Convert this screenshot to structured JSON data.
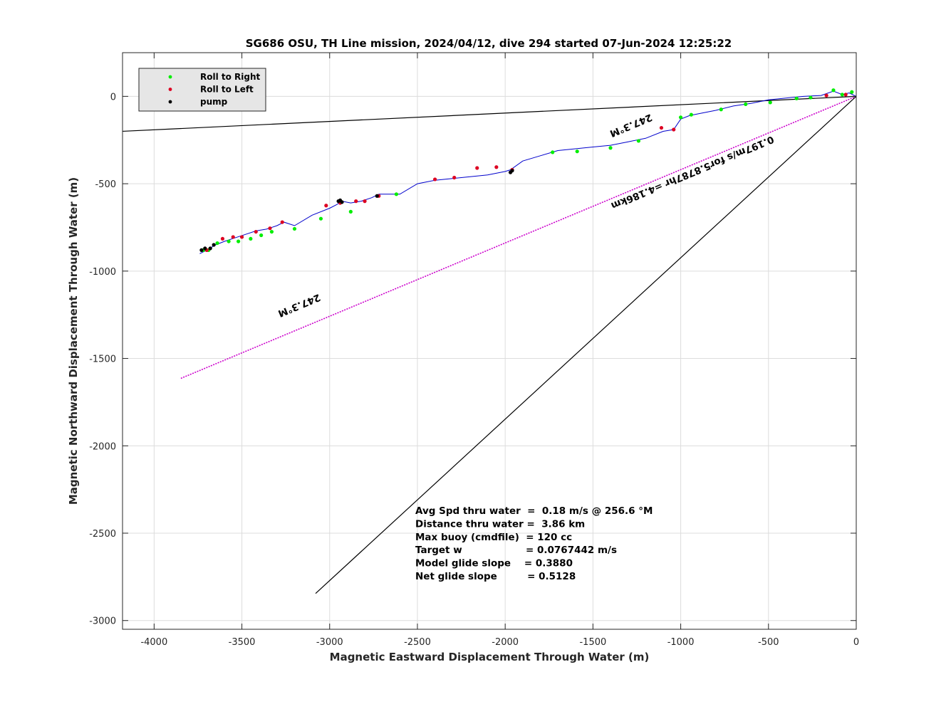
{
  "chart_data": {
    "type": "line",
    "title": "SG686 OSU, TH Line mission, 2024/04/12, dive 294 started 07-Jun-2024 12:25:22",
    "xlabel": "Magnetic Eastward Displacement Through Water (m)",
    "ylabel": "Magnetic Northward Displacement Through Water (m)",
    "xlim": [
      -4180,
      0
    ],
    "ylim": [
      -3050,
      250
    ],
    "xticks": [
      -4000,
      -3500,
      -3000,
      -2500,
      -2000,
      -1500,
      -1000,
      -500,
      0
    ],
    "yticks": [
      0,
      -500,
      -1000,
      -1500,
      -2000,
      -2500,
      -3000
    ],
    "xtick_labels": [
      "-4000",
      "-3500",
      "-3000",
      "-2500",
      "-2000",
      "-1500",
      "-1000",
      "-500",
      "0"
    ],
    "ytick_labels": [
      "0",
      "-500",
      "-1000",
      "-1500",
      "-2000",
      "-2500",
      "-3000"
    ],
    "grid": true,
    "legend_position": "top-left",
    "legend": [
      {
        "label": "Roll to Right",
        "color": "#00ee00"
      },
      {
        "label": "Roll to Left",
        "color": "#dd0022"
      },
      {
        "label": "pump",
        "color": "#000000"
      }
    ],
    "track": {
      "color": "#0000cc",
      "x": [
        -3740,
        -3700,
        -3650,
        -3600,
        -3540,
        -3480,
        -3420,
        -3360,
        -3300,
        -3260,
        -3200,
        -3100,
        -3000,
        -2960,
        -2930,
        -2880,
        -2820,
        -2760,
        -2720,
        -2600,
        -2500,
        -2400,
        -2300,
        -2200,
        -2100,
        -2000,
        -1970,
        -1900,
        -1800,
        -1700,
        -1600,
        -1500,
        -1400,
        -1300,
        -1200,
        -1100,
        -1040,
        -1000,
        -950,
        -900,
        -800,
        -700,
        -600,
        -500,
        -400,
        -300,
        -200,
        -130,
        -80,
        -40,
        0
      ],
      "y": [
        -900,
        -880,
        -850,
        -830,
        -810,
        -790,
        -770,
        -760,
        -740,
        -720,
        -740,
        -680,
        -640,
        -620,
        -600,
        -610,
        -600,
        -580,
        -560,
        -560,
        -500,
        -480,
        -470,
        -460,
        -450,
        -430,
        -420,
        -370,
        -340,
        -310,
        -300,
        -290,
        -280,
        -260,
        -240,
        -200,
        -190,
        -130,
        -110,
        -100,
        -80,
        -55,
        -40,
        -20,
        -10,
        0,
        5,
        30,
        10,
        20,
        0
      ]
    },
    "markers": {
      "right": {
        "x": [
          -3720,
          -3690,
          -3640,
          -3575,
          -3520,
          -3450,
          -3390,
          -3330,
          -3200,
          -3050,
          -2880,
          -2620,
          -1730,
          -1590,
          -1400,
          -1240,
          -1000,
          -940,
          -770,
          -630,
          -490,
          -340,
          -260,
          -130,
          -80,
          -25
        ],
        "y": [
          -880,
          -880,
          -840,
          -830,
          -830,
          -815,
          -795,
          -775,
          -758,
          -700,
          -660,
          -560,
          -320,
          -315,
          -295,
          -255,
          -120,
          -105,
          -75,
          -45,
          -35,
          -12,
          -7,
          35,
          10,
          25
        ]
      },
      "left": {
        "x": [
          -3700,
          -3610,
          -3550,
          -3500,
          -3420,
          -3340,
          -3270,
          -3020,
          -2940,
          -2850,
          -2800,
          -2720,
          -2400,
          -2290,
          -2160,
          -2050,
          -1960,
          -1110,
          -1040,
          -170,
          -60
        ],
        "y": [
          -880,
          -815,
          -805,
          -805,
          -775,
          -755,
          -720,
          -625,
          -610,
          -600,
          -600,
          -570,
          -475,
          -465,
          -410,
          -405,
          -420,
          -180,
          -190,
          5,
          10
        ]
      },
      "pump": {
        "x": [
          -3730,
          -3710,
          -3680,
          -3660,
          -2940,
          -2930,
          -2730,
          -1970,
          -1960,
          -2950
        ],
        "y": [
          -880,
          -870,
          -870,
          -850,
          -595,
          -605,
          -570,
          -435,
          -425,
          -600
        ]
      }
    },
    "reference_lines": [
      {
        "name": "black-line-1",
        "color": "#000000",
        "x": [
          0,
          -4180
        ],
        "y": [
          0,
          -200
        ]
      },
      {
        "name": "magenta-line",
        "color": "#cc00cc",
        "x": [
          0,
          -3850
        ],
        "y": [
          0,
          -1615
        ]
      },
      {
        "name": "black-line-2",
        "color": "#000000",
        "x": [
          0,
          -3080
        ],
        "y": [
          0,
          -2845
        ]
      }
    ],
    "rotated_labels": [
      {
        "name": "heading-label-1",
        "text": "247.3°M",
        "x": -1290,
        "y": -150,
        "angle": 157.3
      },
      {
        "name": "speed-label",
        "text": "0.197m/s for5.8787hr =4.186km",
        "x": -940,
        "y": -420,
        "angle": 157.3
      },
      {
        "name": "heading-label-2",
        "text": "247.3°M",
        "x": -3180,
        "y": -1180,
        "angle": 157.3
      }
    ],
    "annotations": [
      "Avg Spd thru water  =  0.18 m/s @ 256.6 °M",
      "Distance thru water =  3.86 km",
      "Max buoy (cmdfile)  = 120 cc",
      "Target w                   = 0.0767442 m/s",
      "Model glide slope    = 0.3880",
      "Net glide slope         = 0.5128"
    ]
  }
}
